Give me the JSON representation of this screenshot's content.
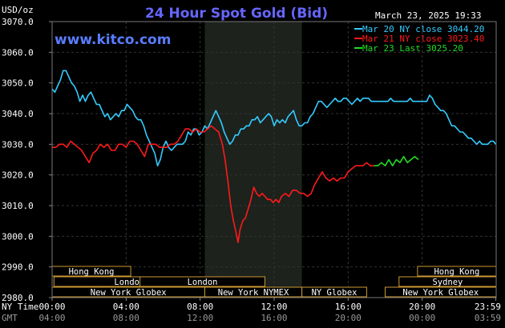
{
  "chart_data": {
    "type": "line",
    "title": "24 Hour Spot Gold (Bid)",
    "subtitle": "www.kitco.com",
    "timestamp": "March 23, 2025 19:33",
    "ylabel": "USD/oz",
    "ylim": [
      2980,
      3070
    ],
    "y_ticks": [
      "2980.0",
      "2990.0",
      "3000.0",
      "3010.0",
      "3020.0",
      "3030.0",
      "3040.0",
      "3050.0",
      "3060.0",
      "3070.0"
    ],
    "x_labels": {
      "row1_label": "NY Time",
      "row2_label": "GMT",
      "ny_time": [
        "00:00",
        "04:00",
        "08:00",
        "12:00",
        "16:00",
        "20:00",
        "23:59"
      ],
      "gmt": [
        "04:00",
        "08:00",
        "12:00",
        "16:00",
        "20:00",
        "00:00",
        "03:59"
      ]
    },
    "shaded_session": {
      "from_hour": 8.25,
      "to_hour": 13.5
    },
    "legend_position": "top-right",
    "series": [
      {
        "name": "Mar 20 NY close 3044.20",
        "color": "#33ccff",
        "points": [
          [
            0.0,
            3048
          ],
          [
            0.15,
            3047
          ],
          [
            0.3,
            3049
          ],
          [
            0.45,
            3051
          ],
          [
            0.6,
            3054
          ],
          [
            0.75,
            3054
          ],
          [
            0.9,
            3052
          ],
          [
            1.05,
            3050
          ],
          [
            1.2,
            3049
          ],
          [
            1.35,
            3047
          ],
          [
            1.5,
            3044
          ],
          [
            1.65,
            3046
          ],
          [
            1.8,
            3044
          ],
          [
            1.95,
            3046
          ],
          [
            2.1,
            3047
          ],
          [
            2.25,
            3045
          ],
          [
            2.4,
            3043
          ],
          [
            2.55,
            3043
          ],
          [
            2.7,
            3041
          ],
          [
            2.85,
            3039
          ],
          [
            3.0,
            3040
          ],
          [
            3.15,
            3038
          ],
          [
            3.3,
            3039
          ],
          [
            3.45,
            3040
          ],
          [
            3.6,
            3039
          ],
          [
            3.75,
            3041
          ],
          [
            3.9,
            3041
          ],
          [
            4.05,
            3043
          ],
          [
            4.2,
            3042
          ],
          [
            4.35,
            3041
          ],
          [
            4.5,
            3039
          ],
          [
            4.65,
            3038
          ],
          [
            4.8,
            3038
          ],
          [
            4.95,
            3036
          ],
          [
            5.1,
            3033
          ],
          [
            5.25,
            3031
          ],
          [
            5.4,
            3029
          ],
          [
            5.55,
            3027
          ],
          [
            5.7,
            3023
          ],
          [
            5.85,
            3025
          ],
          [
            6.0,
            3029
          ],
          [
            6.15,
            3031
          ],
          [
            6.3,
            3029
          ],
          [
            6.45,
            3028
          ],
          [
            6.6,
            3029
          ],
          [
            6.75,
            3030
          ],
          [
            6.9,
            3030
          ],
          [
            7.05,
            3030
          ],
          [
            7.2,
            3031
          ],
          [
            7.35,
            3034
          ],
          [
            7.5,
            3033
          ],
          [
            7.65,
            3035
          ],
          [
            7.8,
            3035
          ],
          [
            7.95,
            3033
          ],
          [
            8.1,
            3034
          ],
          [
            8.25,
            3036
          ],
          [
            8.4,
            3035
          ],
          [
            8.55,
            3037
          ],
          [
            8.7,
            3039
          ],
          [
            8.85,
            3041
          ],
          [
            9.0,
            3039
          ],
          [
            9.15,
            3037
          ],
          [
            9.3,
            3034
          ],
          [
            9.45,
            3032
          ],
          [
            9.6,
            3030
          ],
          [
            9.75,
            3031
          ],
          [
            9.9,
            3033
          ],
          [
            10.05,
            3033
          ],
          [
            10.2,
            3035
          ],
          [
            10.35,
            3035
          ],
          [
            10.5,
            3036
          ],
          [
            10.65,
            3036
          ],
          [
            10.8,
            3038
          ],
          [
            10.95,
            3038
          ],
          [
            11.1,
            3039
          ],
          [
            11.25,
            3037
          ],
          [
            11.4,
            3038
          ],
          [
            11.55,
            3039
          ],
          [
            11.7,
            3040
          ],
          [
            11.85,
            3039
          ],
          [
            12.0,
            3036
          ],
          [
            12.15,
            3038
          ],
          [
            12.3,
            3037
          ],
          [
            12.45,
            3038
          ],
          [
            12.6,
            3037
          ],
          [
            12.75,
            3039
          ],
          [
            12.9,
            3040
          ],
          [
            13.05,
            3041
          ],
          [
            13.2,
            3038
          ],
          [
            13.35,
            3036
          ],
          [
            13.5,
            3036
          ],
          [
            13.65,
            3037
          ],
          [
            13.8,
            3037
          ],
          [
            13.95,
            3039
          ],
          [
            14.1,
            3040
          ],
          [
            14.25,
            3042
          ],
          [
            14.4,
            3044
          ],
          [
            14.55,
            3044
          ],
          [
            14.7,
            3043
          ],
          [
            14.85,
            3042
          ],
          [
            15.0,
            3043
          ],
          [
            15.15,
            3044
          ],
          [
            15.3,
            3045
          ],
          [
            15.45,
            3044
          ],
          [
            15.6,
            3044
          ],
          [
            15.75,
            3045
          ],
          [
            15.9,
            3045
          ],
          [
            16.05,
            3044
          ],
          [
            16.2,
            3043
          ],
          [
            16.35,
            3044
          ],
          [
            16.5,
            3045
          ],
          [
            16.65,
            3044
          ],
          [
            16.8,
            3045
          ],
          [
            16.95,
            3045
          ],
          [
            17.1,
            3045
          ],
          [
            17.25,
            3044
          ],
          [
            17.4,
            3044
          ],
          [
            17.55,
            3044
          ],
          [
            17.7,
            3044
          ],
          [
            17.85,
            3044
          ],
          [
            18.0,
            3044
          ],
          [
            18.15,
            3044
          ],
          [
            18.3,
            3045
          ],
          [
            18.45,
            3044
          ],
          [
            18.6,
            3044
          ],
          [
            18.75,
            3044
          ],
          [
            18.9,
            3044
          ],
          [
            19.05,
            3044
          ],
          [
            19.2,
            3044
          ],
          [
            19.35,
            3045
          ],
          [
            19.5,
            3044
          ],
          [
            19.65,
            3044
          ],
          [
            19.8,
            3044
          ],
          [
            19.95,
            3044
          ],
          [
            20.1,
            3044
          ],
          [
            20.25,
            3044
          ],
          [
            20.4,
            3046
          ],
          [
            20.55,
            3045
          ],
          [
            20.7,
            3043
          ],
          [
            20.85,
            3042
          ],
          [
            21.0,
            3041
          ],
          [
            21.15,
            3041
          ],
          [
            21.3,
            3040
          ],
          [
            21.45,
            3038
          ],
          [
            21.6,
            3036
          ],
          [
            21.75,
            3036
          ],
          [
            21.9,
            3035
          ],
          [
            22.05,
            3034
          ],
          [
            22.2,
            3034
          ],
          [
            22.35,
            3033
          ],
          [
            22.5,
            3032
          ],
          [
            22.65,
            3032
          ],
          [
            22.8,
            3031
          ],
          [
            22.95,
            3030
          ],
          [
            23.1,
            3031
          ],
          [
            23.25,
            3030
          ],
          [
            23.4,
            3030
          ],
          [
            23.55,
            3030
          ],
          [
            23.7,
            3031
          ],
          [
            23.85,
            3031
          ],
          [
            23.98,
            3030
          ]
        ]
      },
      {
        "name": "Mar 21 NY close 3023.40",
        "color": "#ff1a1a",
        "points": [
          [
            0.0,
            3029
          ],
          [
            0.2,
            3029
          ],
          [
            0.4,
            3030
          ],
          [
            0.6,
            3030
          ],
          [
            0.8,
            3029
          ],
          [
            1.0,
            3031
          ],
          [
            1.2,
            3030
          ],
          [
            1.4,
            3029
          ],
          [
            1.6,
            3028
          ],
          [
            1.8,
            3026
          ],
          [
            2.0,
            3024
          ],
          [
            2.2,
            3027
          ],
          [
            2.4,
            3028
          ],
          [
            2.6,
            3030
          ],
          [
            2.8,
            3029
          ],
          [
            3.0,
            3030
          ],
          [
            3.2,
            3028
          ],
          [
            3.4,
            3028
          ],
          [
            3.6,
            3030
          ],
          [
            3.8,
            3030
          ],
          [
            4.0,
            3029
          ],
          [
            4.2,
            3031
          ],
          [
            4.4,
            3031
          ],
          [
            4.6,
            3030
          ],
          [
            4.8,
            3028
          ],
          [
            5.0,
            3026
          ],
          [
            5.2,
            3030
          ],
          [
            5.4,
            3030
          ],
          [
            5.6,
            3030
          ],
          [
            5.8,
            3029
          ],
          [
            6.0,
            3029
          ],
          [
            6.2,
            3029
          ],
          [
            6.4,
            3030
          ],
          [
            6.6,
            3030
          ],
          [
            6.8,
            3031
          ],
          [
            7.0,
            3033
          ],
          [
            7.2,
            3035
          ],
          [
            7.4,
            3035
          ],
          [
            7.6,
            3034
          ],
          [
            7.8,
            3035
          ],
          [
            8.0,
            3034
          ],
          [
            8.2,
            3034
          ],
          [
            8.4,
            3035
          ],
          [
            8.6,
            3036
          ],
          [
            8.8,
            3035
          ],
          [
            9.0,
            3034
          ],
          [
            9.2,
            3030
          ],
          [
            9.35,
            3025
          ],
          [
            9.5,
            3018
          ],
          [
            9.65,
            3010
          ],
          [
            9.8,
            3005
          ],
          [
            9.95,
            3001
          ],
          [
            10.05,
            2998
          ],
          [
            10.15,
            3002
          ],
          [
            10.3,
            3005
          ],
          [
            10.45,
            3006
          ],
          [
            10.6,
            3009
          ],
          [
            10.75,
            3012
          ],
          [
            10.9,
            3016
          ],
          [
            11.05,
            3014
          ],
          [
            11.2,
            3013
          ],
          [
            11.35,
            3014
          ],
          [
            11.5,
            3013
          ],
          [
            11.65,
            3012
          ],
          [
            11.8,
            3012
          ],
          [
            11.95,
            3011
          ],
          [
            12.1,
            3012
          ],
          [
            12.25,
            3011
          ],
          [
            12.4,
            3013
          ],
          [
            12.6,
            3014
          ],
          [
            12.8,
            3013
          ],
          [
            13.0,
            3015
          ],
          [
            13.2,
            3015
          ],
          [
            13.4,
            3014
          ],
          [
            13.6,
            3014
          ],
          [
            13.8,
            3013
          ],
          [
            14.0,
            3014
          ],
          [
            14.2,
            3017
          ],
          [
            14.4,
            3019
          ],
          [
            14.6,
            3021
          ],
          [
            14.8,
            3019
          ],
          [
            15.0,
            3018
          ],
          [
            15.2,
            3019
          ],
          [
            15.4,
            3018
          ],
          [
            15.6,
            3019
          ],
          [
            15.8,
            3019
          ],
          [
            16.0,
            3021
          ],
          [
            16.2,
            3022
          ],
          [
            16.4,
            3023
          ],
          [
            16.6,
            3023
          ],
          [
            16.8,
            3023
          ],
          [
            17.0,
            3024
          ],
          [
            17.2,
            3023
          ],
          [
            17.4,
            3023
          ]
        ]
      },
      {
        "name": "Mar 23 Last 3025.20",
        "color": "#22dd22",
        "points": [
          [
            17.4,
            3023
          ],
          [
            17.6,
            3023
          ],
          [
            17.8,
            3024
          ],
          [
            18.0,
            3023
          ],
          [
            18.2,
            3025
          ],
          [
            18.4,
            3023
          ],
          [
            18.6,
            3025
          ],
          [
            18.8,
            3024
          ],
          [
            19.0,
            3026
          ],
          [
            19.2,
            3024
          ],
          [
            19.4,
            3025
          ],
          [
            19.6,
            3026
          ],
          [
            19.8,
            3025
          ]
        ]
      }
    ],
    "sessions": [
      {
        "label": "Hong Kong",
        "from": 0,
        "to": 4.25,
        "row": 0
      },
      {
        "label": "London",
        "from": 0.1,
        "to": 8.25,
        "row": 1
      },
      {
        "label": "New York Globex",
        "from": 0,
        "to": 8.25,
        "row": 2
      },
      {
        "label": "Hong Kong",
        "from": 19.75,
        "to": 24,
        "row": 0
      },
      {
        "label": "Sydney",
        "from": 18.75,
        "to": 24,
        "row": 1
      },
      {
        "label": "New York Globex",
        "from": 18,
        "to": 24,
        "row": 2
      },
      {
        "label": "London",
        "from": 4.75,
        "to": 11.5,
        "row": 1
      },
      {
        "label": "New York NYMEX",
        "from": 8.25,
        "to": 13.5,
        "row": 2
      },
      {
        "label": "NY Globex",
        "from": 13.5,
        "to": 17.0,
        "row": 2
      }
    ]
  }
}
